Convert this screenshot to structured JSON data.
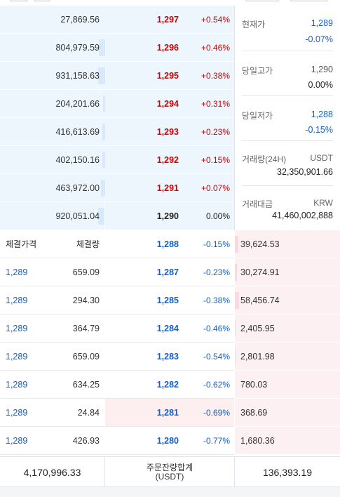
{
  "asks": [
    {
      "volume": "27,869.56",
      "price": "1,297",
      "change": "+0.54%",
      "bar": 0.0
    },
    {
      "volume": "804,979.59",
      "price": "1,296",
      "change": "+0.46%",
      "bar": 0.06
    },
    {
      "volume": "931,158.63",
      "price": "1,295",
      "change": "+0.38%",
      "bar": 0.07
    },
    {
      "volume": "204,201.66",
      "price": "1,294",
      "change": "+0.31%",
      "bar": 0.02
    },
    {
      "volume": "416,613.69",
      "price": "1,293",
      "change": "+0.23%",
      "bar": 0.03
    },
    {
      "volume": "402,150.16",
      "price": "1,292",
      "change": "+0.15%",
      "bar": 0.03
    },
    {
      "volume": "463,972.00",
      "price": "1,291",
      "change": "+0.07%",
      "bar": 0.04
    },
    {
      "volume": "920,051.04",
      "price": "1,290",
      "change": "0.00%",
      "bar": 0.07
    }
  ],
  "info": {
    "current_label": "현재가",
    "current_price": "1,289",
    "current_change": "-0.07%",
    "high_label": "당일고가",
    "high_price": "1,290",
    "high_change": "0.00%",
    "low_label": "당일저가",
    "low_price": "1,288",
    "low_change": "-0.15%",
    "volume_label": "거래량(24H)",
    "volume_unit": "USDT",
    "volume_value": "32,350,901.66",
    "amount_label": "거래대금",
    "amount_unit": "KRW",
    "amount_value": "41,460,002,888"
  },
  "trades_header": {
    "price": "체결가격",
    "qty": "체결량"
  },
  "bids": [
    {
      "trade_price": "",
      "trade_qty": "",
      "price": "1,288",
      "change": "-0.15%",
      "volume": "39,624.53",
      "bar": 0.03
    },
    {
      "trade_price": "1,289",
      "trade_qty": "659.09",
      "price": "1,287",
      "change": "-0.23%",
      "volume": "30,274.91",
      "bar": 0.02
    },
    {
      "trade_price": "1,289",
      "trade_qty": "294.30",
      "price": "1,285",
      "change": "-0.38%",
      "volume": "58,456.74",
      "bar": 0.04
    },
    {
      "trade_price": "1,289",
      "trade_qty": "364.79",
      "price": "1,284",
      "change": "-0.46%",
      "volume": "2,405.95",
      "bar": 0.005
    },
    {
      "trade_price": "1,289",
      "trade_qty": "659.09",
      "price": "1,283",
      "change": "-0.54%",
      "volume": "2,801.98",
      "bar": 0.005
    },
    {
      "trade_price": "1,289",
      "trade_qty": "634.25",
      "price": "1,282",
      "change": "-0.62%",
      "volume": "780.03",
      "bar": 0.0
    },
    {
      "trade_price": "1,289",
      "trade_qty": "24.84",
      "price": "1,281",
      "change": "-0.69%",
      "volume": "368.69",
      "bar": 0.0
    },
    {
      "trade_price": "1,289",
      "trade_qty": "426.93",
      "price": "1,280",
      "change": "-0.77%",
      "volume": "1,680.36",
      "bar": 0.0
    }
  ],
  "footer": {
    "ask_total": "4,170,996.33",
    "label_line1": "주문잔량합계",
    "label_line2": "(USDT)",
    "bid_total": "136,393.19"
  },
  "colors": {
    "up": "#d60000",
    "down": "#1261c4",
    "ask_bg": "#eef6fd",
    "bid_bg": "#fdf0f2"
  }
}
